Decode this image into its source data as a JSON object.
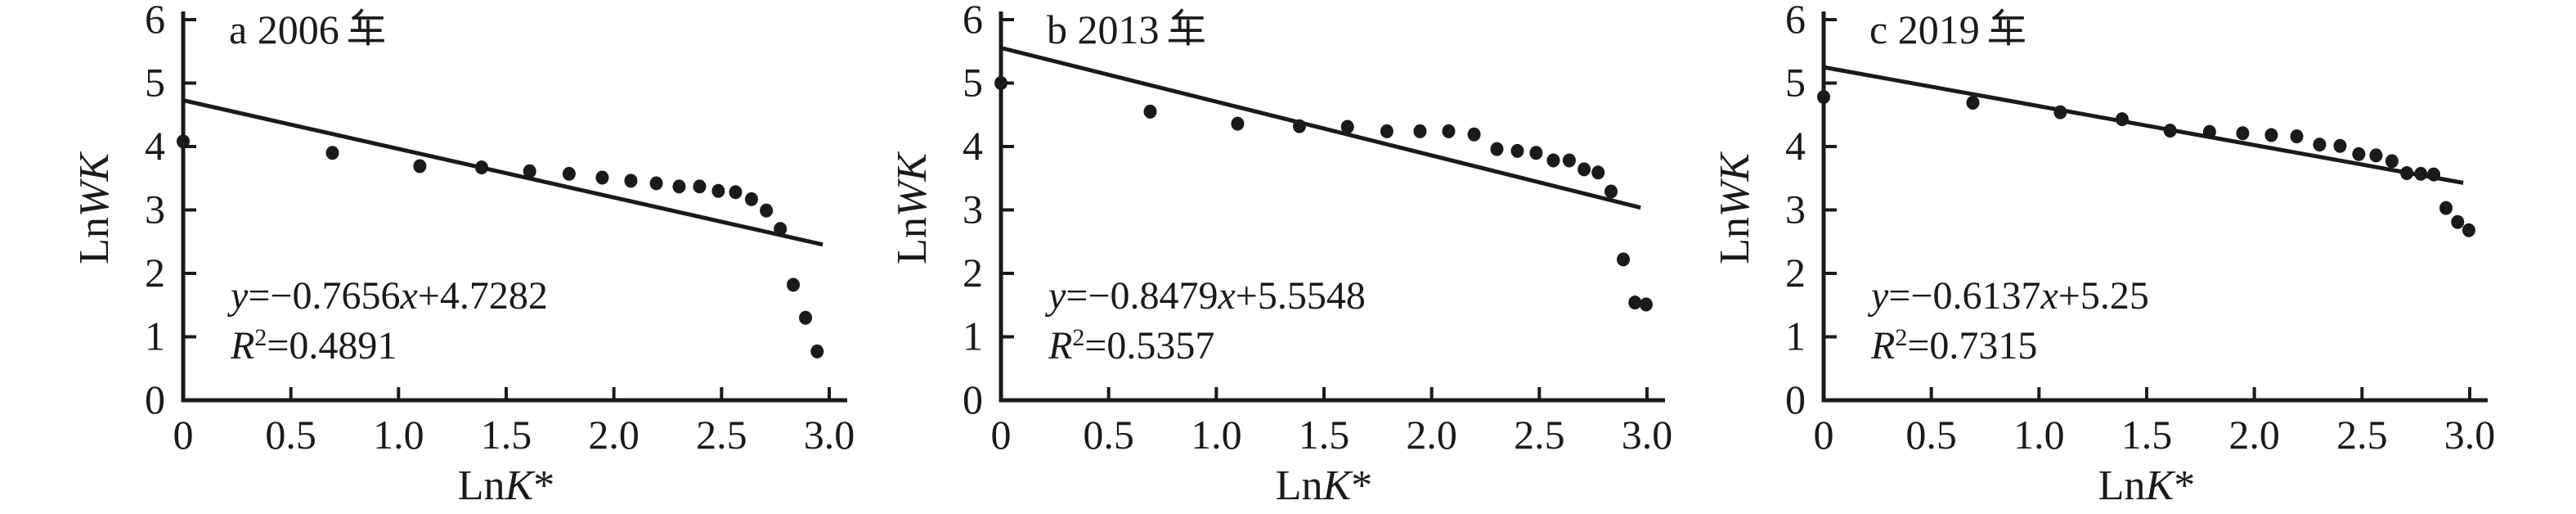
{
  "page": {
    "background": "#ffffff",
    "ink": "#1a1a1a"
  },
  "axes": {
    "xlabel": "LnK*",
    "xlabel_parts": {
      "pre": "Ln",
      "italic": "K",
      "post": "*"
    },
    "ylabel": "LnWK",
    "ylabel_parts": {
      "pre": "Ln",
      "italic": "WK"
    },
    "xlim": [
      0,
      3
    ],
    "ylim": [
      0,
      6
    ],
    "xtick_values": [
      0,
      0.5,
      1.0,
      1.5,
      2.0,
      2.5,
      3.0
    ],
    "xtick_labels": [
      "0",
      "0.5",
      "1.0",
      "1.5",
      "2.0",
      "2.5",
      "3.0"
    ],
    "ytick_values": [
      0,
      1,
      2,
      3,
      4,
      5,
      6
    ],
    "ytick_labels": [
      "0",
      "1",
      "2",
      "3",
      "4",
      "5",
      "6"
    ],
    "grid": false
  },
  "chart_data": [
    {
      "type": "scatter",
      "title": "a 2006年",
      "title_latin": "a 2006",
      "panel_letter": "a",
      "year": "2006",
      "xlabel": "LnK*",
      "ylabel": "LnWK",
      "xlim": [
        0,
        3
      ],
      "ylim": [
        0,
        6
      ],
      "equation_text": "y=−0.7656x+4.7282",
      "eq_mid": "=−0.7656",
      "eq_tail": "+4.7282",
      "r2_text": "R²=0.4891",
      "r2_tail": "=0.4891",
      "trendline": {
        "slope": -0.7656,
        "intercept": 4.7282,
        "x_start": 0,
        "x_end": 2.97
      },
      "points": {
        "rank": [
          1,
          2,
          3,
          4,
          5,
          6,
          7,
          8,
          9,
          10,
          11,
          12,
          13,
          14,
          15,
          16,
          17,
          18,
          19
        ],
        "x": [
          0,
          0.693,
          1.099,
          1.386,
          1.609,
          1.792,
          1.946,
          2.079,
          2.197,
          2.303,
          2.398,
          2.485,
          2.565,
          2.639,
          2.708,
          2.773,
          2.833,
          2.89,
          2.944
        ],
        "y": [
          4.08,
          3.9,
          3.69,
          3.67,
          3.61,
          3.57,
          3.51,
          3.46,
          3.42,
          3.37,
          3.37,
          3.3,
          3.28,
          3.17,
          2.99,
          2.7,
          1.82,
          1.3,
          0.77
        ]
      }
    },
    {
      "type": "scatter",
      "title": "b 2013年",
      "title_latin": "b 2013",
      "panel_letter": "b",
      "year": "2013",
      "xlabel": "LnK*",
      "ylabel": "LnWK",
      "xlim": [
        0,
        3
      ],
      "ylim": [
        0,
        6
      ],
      "equation_text": "y=−0.8479x+5.5548",
      "eq_mid": "=−0.8479",
      "eq_tail": "+5.5548",
      "r2_text": "R²=0.5357",
      "r2_tail": "=0.5357",
      "trendline": {
        "slope": -0.8479,
        "intercept": 5.5548,
        "x_start": 0,
        "x_end": 2.97
      },
      "points": {
        "rank": [
          1,
          2,
          3,
          4,
          5,
          6,
          7,
          8,
          9,
          10,
          11,
          12,
          13,
          14,
          15,
          16,
          17,
          18,
          19,
          20
        ],
        "x": [
          0,
          0.693,
          1.099,
          1.386,
          1.609,
          1.792,
          1.946,
          2.079,
          2.197,
          2.303,
          2.398,
          2.485,
          2.565,
          2.639,
          2.708,
          2.773,
          2.833,
          2.89,
          2.944,
          2.996
        ],
        "y": [
          5.0,
          4.55,
          4.36,
          4.32,
          4.31,
          4.24,
          4.24,
          4.24,
          4.19,
          3.96,
          3.93,
          3.9,
          3.78,
          3.78,
          3.64,
          3.59,
          3.29,
          2.22,
          1.54,
          1.51
        ]
      }
    },
    {
      "type": "scatter",
      "title": "c 2019年",
      "title_latin": "c 2019",
      "panel_letter": "c",
      "year": "2019",
      "xlabel": "LnK*",
      "ylabel": "LnWK",
      "xlim": [
        0,
        3
      ],
      "ylim": [
        0,
        6
      ],
      "equation_text": "y=−0.6137x+5.25",
      "eq_mid": "=−0.6137",
      "eq_tail": "+5.25",
      "r2_text": "R²=0.7315",
      "r2_tail": "=0.7315",
      "trendline": {
        "slope": -0.6137,
        "intercept": 5.25,
        "x_start": 0,
        "x_end": 2.97
      },
      "points": {
        "rank": [
          1,
          2,
          3,
          4,
          5,
          6,
          7,
          8,
          9,
          10,
          11,
          12,
          13,
          14,
          15,
          16,
          17,
          18,
          19,
          20
        ],
        "x": [
          0,
          0.693,
          1.099,
          1.386,
          1.609,
          1.792,
          1.946,
          2.079,
          2.197,
          2.303,
          2.398,
          2.485,
          2.565,
          2.639,
          2.708,
          2.773,
          2.833,
          2.89,
          2.944,
          2.996
        ],
        "y": [
          4.78,
          4.69,
          4.54,
          4.43,
          4.25,
          4.23,
          4.21,
          4.18,
          4.16,
          4.03,
          4.01,
          3.88,
          3.86,
          3.77,
          3.58,
          3.57,
          3.56,
          3.03,
          2.81,
          2.68
        ]
      }
    }
  ]
}
